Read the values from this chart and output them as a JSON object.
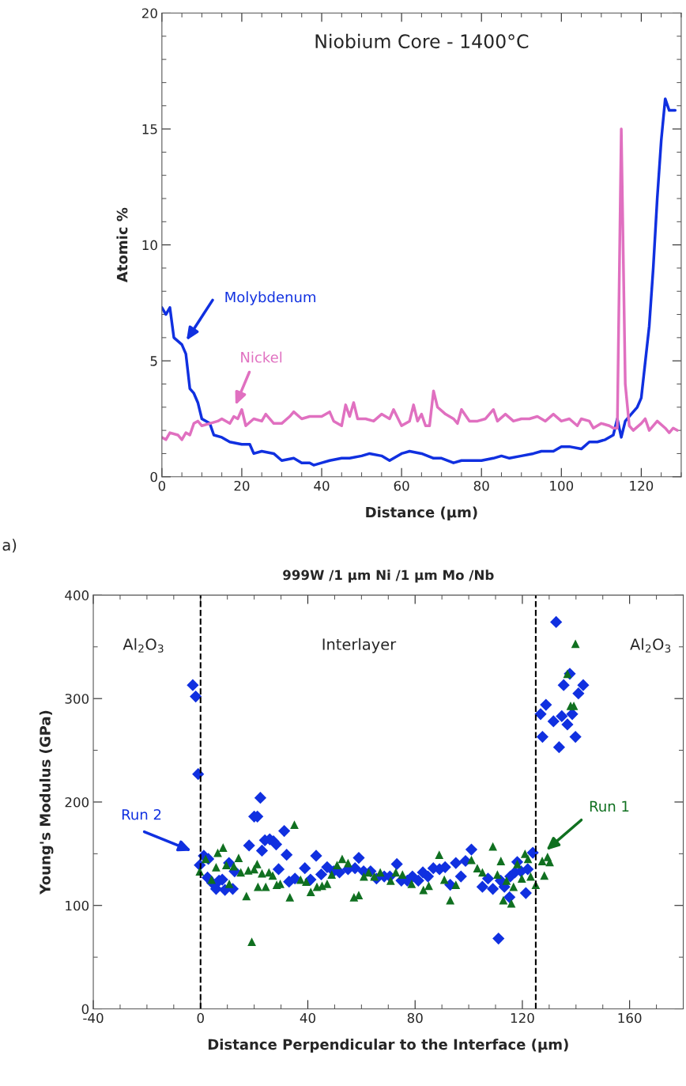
{
  "chart_data": [
    {
      "type": "line",
      "title": "Niobium Core - 1400°C",
      "xlabel": "Distance (µm)",
      "ylabel": "Atomic %",
      "xlim": [
        0,
        130
      ],
      "xticks": [
        0,
        20,
        40,
        60,
        80,
        100,
        120
      ],
      "ylim": [
        0,
        20
      ],
      "yticks": [
        0,
        5,
        10,
        15,
        20
      ],
      "grid": false,
      "legend": false,
      "marker": "none",
      "line_style": "solid",
      "series": [
        {
          "name": "Molybdenum",
          "color": "#1030e0",
          "x": [
            0,
            1,
            2,
            3,
            5,
            6,
            7,
            8,
            9,
            10,
            12,
            13,
            15,
            17,
            20,
            22,
            23,
            25,
            28,
            30,
            33,
            35,
            37,
            38,
            40,
            42,
            45,
            47,
            50,
            52,
            55,
            57,
            60,
            62,
            65,
            68,
            70,
            73,
            75,
            78,
            80,
            83,
            85,
            87,
            90,
            93,
            95,
            98,
            100,
            102,
            105,
            107,
            109,
            111,
            113,
            114,
            115,
            116,
            118,
            119,
            120,
            122,
            123,
            124,
            125,
            126,
            127,
            128.5
          ],
          "values": [
            7.3,
            7.0,
            7.3,
            6.0,
            5.7,
            5.3,
            3.8,
            3.6,
            3.2,
            2.5,
            2.3,
            1.8,
            1.7,
            1.5,
            1.4,
            1.4,
            1.0,
            1.1,
            1.0,
            0.7,
            0.8,
            0.6,
            0.6,
            0.5,
            0.6,
            0.7,
            0.8,
            0.8,
            0.9,
            1.0,
            0.9,
            0.7,
            1.0,
            1.1,
            1.0,
            0.8,
            0.8,
            0.6,
            0.7,
            0.7,
            0.7,
            0.8,
            0.9,
            0.8,
            0.9,
            1.0,
            1.1,
            1.1,
            1.3,
            1.3,
            1.2,
            1.5,
            1.5,
            1.6,
            1.8,
            2.5,
            1.7,
            2.4,
            2.8,
            3.0,
            3.4,
            6.5,
            9.0,
            12.0,
            14.5,
            16.3,
            15.8,
            15.8
          ]
        },
        {
          "name": "Nickel",
          "color": "#e070c0",
          "x": [
            0,
            1,
            2,
            4,
            5,
            6,
            7,
            8,
            9,
            10,
            12,
            14,
            15,
            17,
            18,
            19,
            20,
            21,
            23,
            25,
            26,
            28,
            30,
            32,
            33,
            35,
            37,
            40,
            42,
            43,
            45,
            46,
            47,
            48,
            49,
            51,
            53,
            55,
            57,
            58,
            60,
            62,
            63,
            64,
            65,
            66,
            67,
            68,
            69,
            71,
            73,
            74,
            75,
            77,
            79,
            81,
            83,
            84,
            86,
            88,
            90,
            92,
            94,
            96,
            98,
            100,
            102,
            104,
            105,
            107,
            108,
            110,
            112,
            113,
            114,
            115,
            116,
            117,
            118,
            120,
            121,
            122,
            124,
            126,
            127,
            128,
            129
          ],
          "values": [
            1.7,
            1.6,
            1.9,
            1.8,
            1.6,
            1.9,
            1.8,
            2.3,
            2.4,
            2.2,
            2.3,
            2.4,
            2.5,
            2.3,
            2.6,
            2.5,
            2.9,
            2.2,
            2.5,
            2.4,
            2.7,
            2.3,
            2.3,
            2.6,
            2.8,
            2.5,
            2.6,
            2.6,
            2.8,
            2.4,
            2.2,
            3.1,
            2.6,
            3.2,
            2.5,
            2.5,
            2.4,
            2.7,
            2.5,
            2.9,
            2.2,
            2.4,
            3.1,
            2.4,
            2.7,
            2.2,
            2.2,
            3.7,
            3.0,
            2.7,
            2.5,
            2.3,
            2.9,
            2.4,
            2.4,
            2.5,
            2.9,
            2.4,
            2.7,
            2.4,
            2.5,
            2.5,
            2.6,
            2.4,
            2.7,
            2.4,
            2.5,
            2.2,
            2.5,
            2.4,
            2.1,
            2.3,
            2.2,
            2.1,
            2.1,
            15.0,
            4.0,
            2.2,
            2.0,
            2.3,
            2.5,
            2.0,
            2.4,
            2.1,
            1.9,
            2.1,
            2.0
          ]
        }
      ]
    },
    {
      "type": "scatter",
      "title": "999W /1 µm Ni /1 µm Mo /Nb",
      "xlabel": "Distance Perpendicular to the Interface (µm)",
      "ylabel": "Young's Modulus (GPa)",
      "xlim": [
        -40,
        180
      ],
      "xticks": [
        -40,
        0,
        40,
        80,
        120,
        160
      ],
      "ylim": [
        0,
        400
      ],
      "yticks": [
        0,
        100,
        200,
        300,
        400
      ],
      "grid": false,
      "legend": false,
      "annotations": [
        "a)",
        "Al$_{2}$O$_{3}$",
        "Interlayer",
        "Al$_{2}$O$_{3}$"
      ],
      "ref_lines": [
        {
          "axis": "x",
          "value": 0,
          "color": "#000000",
          "line_style": "dashed"
        },
        {
          "axis": "x",
          "value": 125,
          "color": "#000000",
          "line_style": "dashed"
        }
      ],
      "series": [
        {
          "name": "Run 2",
          "color": "#1030e0",
          "marker": "diamond",
          "x": [
            -2.9,
            -1.8,
            -0.9,
            -0.3,
            1.2,
            2.9,
            2.6,
            4.3,
            5.8,
            6.9,
            8.1,
            9.1,
            10.6,
            12,
            12.7,
            18.1,
            20,
            21.2,
            22.3,
            22.9,
            24,
            25.8,
            27.2,
            28.2,
            29.1,
            31.2,
            32.1,
            33,
            35.2,
            38.9,
            41,
            43.1,
            45,
            47.2,
            49.6,
            51.8,
            55,
            57.6,
            59,
            60.8,
            63.4,
            65.6,
            68.5,
            70.6,
            73.2,
            74.9,
            77.1,
            79,
            81.2,
            82.9,
            84.8,
            86.8,
            89.1,
            91.2,
            93.1,
            95.2,
            97.1,
            98.8,
            101,
            105.1,
            107.2,
            109,
            111.1,
            111.9,
            113.3,
            115.2,
            115.5,
            117.2,
            118.1,
            119.5,
            121.3,
            122,
            123.9,
            126.8,
            127.5,
            128.8,
            131.6,
            132.6,
            133.7,
            134.7,
            135.4,
            136.8,
            137.7,
            138.6,
            139.8,
            140.9,
            142.7
          ],
          "values": [
            313,
            302,
            227,
            139,
            148,
            145,
            127,
            122,
            116,
            124,
            125,
            115,
            141,
            116,
            133,
            158,
            186,
            186,
            204,
            153,
            163,
            164,
            162,
            159,
            135,
            172,
            149,
            123,
            126,
            136,
            125,
            148,
            130,
            137,
            133,
            132,
            135,
            136,
            146,
            133,
            133,
            126,
            128,
            128,
            140,
            124,
            124,
            128,
            124,
            132,
            128,
            136,
            135,
            137,
            120,
            141,
            128,
            143,
            154,
            118,
            126,
            116,
            68,
            124,
            118,
            108,
            128,
            132,
            142,
            133,
            112,
            135,
            151,
            285,
            263,
            294,
            278,
            374,
            253,
            283,
            313,
            275,
            324,
            285,
            263,
            305,
            313
          ]
        },
        {
          "name": "Run 1",
          "color": "#107020",
          "marker": "triangle",
          "x": [
            -0.3,
            1.9,
            4.1,
            5.8,
            6.4,
            8.4,
            9.6,
            10.7,
            12.4,
            14.2,
            15,
            17.1,
            19.1,
            17.8,
            20,
            21.1,
            22.9,
            21.4,
            24.3,
            25.5,
            26.9,
            28.4,
            29.7,
            33.3,
            35,
            37.3,
            39.4,
            41.1,
            43.4,
            45.3,
            47.2,
            48.9,
            50.9,
            52.8,
            55,
            57.2,
            59,
            60.9,
            62.7,
            64.8,
            67,
            70.9,
            72.8,
            75.3,
            78.7,
            83.1,
            85.1,
            89,
            90.9,
            93.1,
            95.2,
            101,
            103.2,
            105.1,
            109,
            110.7,
            112,
            112.9,
            114.1,
            115.9,
            116.7,
            118.1,
            119.8,
            121,
            122.1,
            123.1,
            125,
            127.4,
            128.2,
            129.4,
            130.2,
            136.8,
            138,
            139.2,
            139.8
          ],
          "values": [
            133,
            145,
            125,
            137,
            151,
            156,
            139,
            121,
            138,
            146,
            132,
            109,
            65,
            134,
            135,
            140,
            131,
            118,
            118,
            132,
            129,
            120,
            121,
            108,
            178,
            125,
            123,
            113,
            118,
            119,
            121,
            130,
            139,
            145,
            141,
            108,
            110,
            128,
            132,
            128,
            132,
            124,
            132,
            130,
            121,
            115,
            119,
            149,
            125,
            105,
            120,
            144,
            136,
            132,
            157,
            130,
            143,
            105,
            124,
            102,
            118,
            140,
            126,
            150,
            145,
            128,
            120,
            143,
            129,
            147,
            142,
            324,
            293,
            293,
            353
          ]
        }
      ]
    }
  ]
}
